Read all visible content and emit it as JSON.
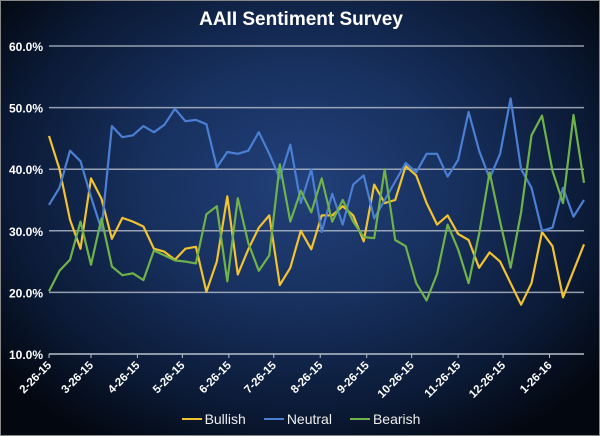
{
  "chart_data": {
    "type": "line",
    "title": "AAII Sentiment Survey",
    "xlabel": "",
    "ylabel": "",
    "ylim": [
      10,
      60
    ],
    "yticks": [
      "10.0%",
      "20.0%",
      "30.0%",
      "40.0%",
      "50.0%",
      "60.0%"
    ],
    "ytick_values": [
      10,
      20,
      30,
      40,
      50,
      60
    ],
    "x_start": "2015-02-26",
    "x_end": "2016-02-18",
    "x_interval_days": 7,
    "xtick_labels": [
      "2-26-15",
      "3-26-15",
      "4-26-15",
      "5-26-15",
      "6-26-15",
      "7-26-15",
      "8-26-15",
      "9-26-15",
      "10-26-15",
      "11-26-15",
      "12-26-15",
      "1-26-16"
    ],
    "xtick_dates": [
      "2015-02-26",
      "2015-03-26",
      "2015-04-26",
      "2015-05-26",
      "2015-06-26",
      "2015-07-26",
      "2015-08-26",
      "2015-09-26",
      "2015-10-26",
      "2015-11-26",
      "2015-12-26",
      "2016-01-26"
    ],
    "grid": true,
    "legend_position": "bottom",
    "series": [
      {
        "name": "Bullish",
        "color": "#f2c230",
        "values": [
          45.4,
          40.0,
          31.8,
          27.1,
          38.5,
          35.2,
          28.7,
          32.1,
          31.5,
          30.7,
          27.1,
          26.6,
          25.3,
          27.1,
          27.4,
          20.1,
          25.0,
          35.6,
          22.9,
          27.0,
          30.5,
          32.5,
          21.2,
          24.0,
          30.0,
          27.0,
          32.5,
          32.5,
          34.0,
          32.5,
          28.3,
          37.5,
          34.5,
          35.0,
          40.5,
          39.0,
          34.5,
          31.0,
          32.5,
          29.5,
          28.5,
          24.0,
          26.5,
          25.0,
          21.5,
          18.0,
          21.5,
          29.8,
          27.5,
          19.2,
          23.5,
          27.8
        ]
      },
      {
        "name": "Neutral",
        "color": "#4a7fd4",
        "values": [
          34.2,
          37.0,
          43.0,
          41.3,
          35.5,
          30.2,
          47.0,
          45.2,
          45.5,
          47.0,
          46.0,
          47.2,
          49.8,
          47.8,
          48.0,
          47.3,
          40.3,
          42.8,
          42.5,
          43.0,
          46.0,
          42.5,
          38.5,
          44.0,
          34.5,
          40.0,
          29.8,
          36.0,
          31.0,
          37.5,
          39.0,
          32.0,
          35.0,
          38.0,
          41.0,
          39.5,
          42.5,
          42.5,
          38.8,
          41.5,
          49.3,
          43.0,
          38.5,
          42.5,
          51.5,
          40.0,
          37.0,
          30.0,
          30.5,
          37.0,
          32.3,
          35.0
        ]
      },
      {
        "name": "Bearish",
        "color": "#6fb24a",
        "values": [
          20.2,
          23.5,
          25.3,
          31.5,
          24.5,
          32.0,
          24.2,
          22.8,
          23.1,
          22.0,
          26.8,
          26.0,
          25.2,
          25.0,
          24.7,
          32.7,
          34.0,
          21.8,
          35.3,
          28.0,
          23.5,
          26.0,
          40.8,
          31.5,
          36.5,
          33.0,
          38.5,
          31.5,
          35.0,
          31.5,
          29.0,
          28.8,
          40.0,
          28.5,
          27.5,
          21.5,
          18.7,
          23.0,
          31.0,
          27.0,
          21.5,
          29.5,
          39.5,
          31.5,
          24.0,
          33.0,
          45.5,
          48.7,
          39.7,
          34.5,
          48.8,
          37.8
        ]
      }
    ]
  }
}
